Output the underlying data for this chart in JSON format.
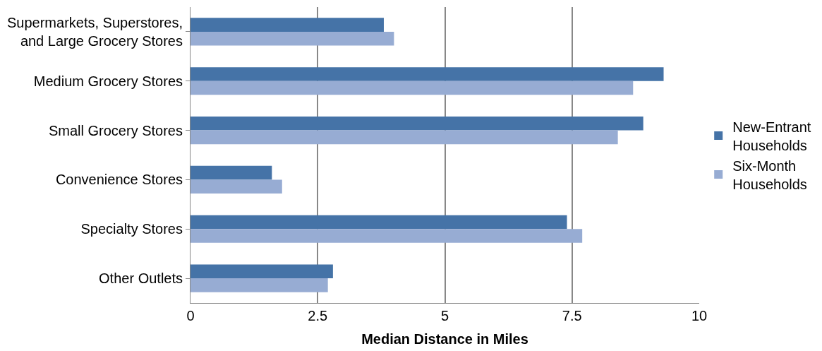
{
  "chart_data": {
    "type": "bar",
    "orientation": "horizontal",
    "xlabel": "Median Distance in Miles",
    "categories": [
      "Supermarkets, Superstores,\nand Large Grocery Stores",
      "Medium Grocery Stores",
      "Small Grocery Stores",
      "Convenience Stores",
      "Specialty Stores",
      "Other Outlets"
    ],
    "series": [
      {
        "name": "New-Entrant\nHouseholds",
        "color": "#4573a7",
        "values": [
          3.8,
          9.3,
          8.9,
          1.6,
          7.4,
          2.8
        ]
      },
      {
        "name": "Six-Month\nHouseholds",
        "color": "#97acd3",
        "values": [
          4.0,
          8.7,
          8.4,
          1.8,
          7.7,
          2.7
        ]
      }
    ],
    "xlim": [
      0,
      10
    ],
    "xticks": [
      0,
      2.5,
      5,
      7.5,
      10
    ],
    "grid": "x",
    "legend": "right"
  }
}
